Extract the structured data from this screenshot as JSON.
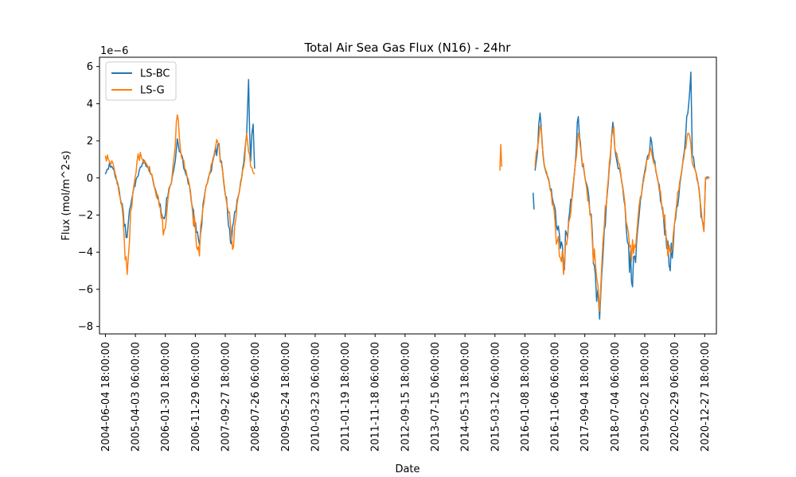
{
  "chart_data": {
    "type": "line",
    "title": "Total Air Sea Gas Flux (N16) - 24hr",
    "xlabel": "Date",
    "ylabel": "Flux (mol/m^2-s)",
    "y_scale_label": "1e−6",
    "x_range": [
      "2004-04-06",
      "2021-04-25"
    ],
    "ylim": [
      -8.4,
      6.5
    ],
    "grid": false,
    "legend_position": "top-left",
    "x_ticks": [
      "2004-06-04 18:00:00",
      "2005-04-03 06:00:00",
      "2006-01-30 18:00:00",
      "2006-11-29 06:00:00",
      "2007-09-27 18:00:00",
      "2008-07-26 06:00:00",
      "2009-05-24 18:00:00",
      "2010-03-23 06:00:00",
      "2011-01-19 18:00:00",
      "2011-11-18 06:00:00",
      "2012-09-15 18:00:00",
      "2013-07-15 06:00:00",
      "2014-05-13 18:00:00",
      "2015-03-12 06:00:00",
      "2016-01-08 18:00:00",
      "2016-11-06 06:00:00",
      "2017-09-04 18:00:00",
      "2018-07-04 06:00:00",
      "2019-05-02 18:00:00",
      "2020-02-29 06:00:00",
      "2020-12-27 18:00:00"
    ],
    "y_ticks": [
      6,
      4,
      2,
      0,
      -2,
      -4,
      -6,
      -8
    ],
    "y_tick_labels": [
      "6",
      "4",
      "2",
      "0",
      "−2",
      "−4",
      "−6",
      "−8"
    ],
    "series": [
      {
        "name": "LS-BC",
        "color": "#1f77b4",
        "segments": [
          [
            [
              "2004-06-04",
              0.2
            ],
            [
              "2004-07-15",
              0.8
            ],
            [
              "2004-09-01",
              0.4
            ],
            [
              "2004-10-20",
              -0.6
            ],
            [
              "2004-12-01",
              -1.8
            ],
            [
              "2005-01-10",
              -3.2
            ],
            [
              "2005-02-15",
              -1.5
            ],
            [
              "2005-03-20",
              -0.5
            ],
            [
              "2005-05-01",
              0.1
            ],
            [
              "2005-06-15",
              0.8
            ],
            [
              "2005-08-01",
              0.6
            ],
            [
              "2005-09-15",
              0.2
            ],
            [
              "2005-11-01",
              -0.8
            ],
            [
              "2005-12-10",
              -1.4
            ],
            [
              "2006-01-20",
              -2.2
            ],
            [
              "2006-02-25",
              -1.0
            ],
            [
              "2006-04-01",
              -0.3
            ],
            [
              "2006-05-01",
              0.6
            ],
            [
              "2006-06-01",
              2.1
            ],
            [
              "2006-07-01",
              1.4
            ],
            [
              "2006-08-15",
              0.4
            ],
            [
              "2006-10-01",
              -0.4
            ],
            [
              "2006-11-01",
              -1.6
            ],
            [
              "2006-12-01",
              -2.4
            ],
            [
              "2007-01-10",
              -3.6
            ],
            [
              "2007-02-15",
              -1.4
            ],
            [
              "2007-03-20",
              -0.4
            ],
            [
              "2007-05-01",
              0.3
            ],
            [
              "2007-06-10",
              1.2
            ],
            [
              "2007-07-15",
              1.8
            ],
            [
              "2007-08-20",
              0.9
            ],
            [
              "2007-09-20",
              -0.6
            ],
            [
              "2007-10-20",
              -1.8
            ],
            [
              "2007-11-20",
              -3.5
            ],
            [
              "2007-12-20",
              -2.4
            ],
            [
              "2008-01-25",
              -1.2
            ],
            [
              "2008-03-01",
              -0.2
            ],
            [
              "2008-04-01",
              0.8
            ],
            [
              "2008-05-01",
              2.4
            ],
            [
              "2008-05-20",
              5.3
            ],
            [
              "2008-06-10",
              0.9
            ],
            [
              "2008-07-05",
              2.9
            ],
            [
              "2008-07-20",
              0.5
            ]
          ],
          [
            [
              "2016-04-01",
              -0.8
            ],
            [
              "2016-04-10",
              -1.7
            ]
          ],
          [
            [
              "2016-04-20",
              0.4
            ],
            [
              "2016-05-15",
              1.4
            ],
            [
              "2016-06-10",
              3.5
            ],
            [
              "2016-07-10",
              1.2
            ],
            [
              "2016-08-15",
              0.2
            ],
            [
              "2016-10-01",
              -0.6
            ],
            [
              "2016-11-01",
              -1.5
            ],
            [
              "2016-12-01",
              -2.8
            ],
            [
              "2017-01-01",
              -3.8
            ],
            [
              "2017-02-01",
              -4.6
            ],
            [
              "2017-03-05",
              -3.0
            ],
            [
              "2017-04-05",
              -1.8
            ],
            [
              "2017-05-05",
              -0.6
            ],
            [
              "2017-06-01",
              0.8
            ],
            [
              "2017-07-01",
              3.3
            ],
            [
              "2017-08-01",
              1.2
            ],
            [
              "2017-09-01",
              0.2
            ],
            [
              "2017-10-15",
              -1.0
            ],
            [
              "2017-11-20",
              -3.0
            ],
            [
              "2017-12-20",
              -5.2
            ],
            [
              "2018-01-15",
              -6.0
            ],
            [
              "2018-02-01",
              -7.6
            ],
            [
              "2018-02-20",
              -5.4
            ],
            [
              "2018-03-20",
              -2.8
            ],
            [
              "2018-04-20",
              -0.8
            ],
            [
              "2018-05-20",
              1.0
            ],
            [
              "2018-06-15",
              3.0
            ],
            [
              "2018-07-15",
              1.2
            ],
            [
              "2018-09-01",
              0.2
            ],
            [
              "2018-10-15",
              -1.5
            ],
            [
              "2018-11-20",
              -3.6
            ],
            [
              "2018-12-20",
              -5.6
            ],
            [
              "2019-01-20",
              -4.2
            ],
            [
              "2019-02-20",
              -2.8
            ],
            [
              "2019-03-20",
              -1.2
            ],
            [
              "2019-05-01",
              0.3
            ],
            [
              "2019-06-01",
              1.2
            ],
            [
              "2019-07-01",
              2.2
            ],
            [
              "2019-08-01",
              1.0
            ],
            [
              "2019-09-15",
              -0.2
            ],
            [
              "2019-11-01",
              -1.8
            ],
            [
              "2019-12-10",
              -3.8
            ],
            [
              "2020-01-15",
              -5.0
            ],
            [
              "2020-02-15",
              -3.6
            ],
            [
              "2020-03-20",
              -1.6
            ],
            [
              "2020-04-20",
              -0.4
            ],
            [
              "2020-05-20",
              0.8
            ],
            [
              "2020-06-20",
              2.4
            ],
            [
              "2020-07-20",
              4.0
            ],
            [
              "2020-08-10",
              5.7
            ],
            [
              "2020-08-25",
              1.2
            ],
            [
              "2020-10-01",
              0.3
            ],
            [
              "2020-11-01",
              -0.6
            ],
            [
              "2020-12-01",
              -2.2
            ],
            [
              "2020-12-20",
              -2.8
            ],
            [
              "2021-01-05",
              0.0
            ],
            [
              "2021-02-15",
              0.0
            ]
          ]
        ]
      },
      {
        "name": "LS-G",
        "color": "#ff7f0e",
        "segments": [
          [
            [
              "2004-06-04",
              1.2
            ],
            [
              "2004-07-15",
              0.9
            ],
            [
              "2004-09-01",
              0.5
            ],
            [
              "2004-10-20",
              -0.8
            ],
            [
              "2004-12-01",
              -2.2
            ],
            [
              "2005-01-10",
              -5.2
            ],
            [
              "2005-02-15",
              -1.8
            ],
            [
              "2005-03-20",
              -0.4
            ],
            [
              "2005-05-01",
              1.3
            ],
            [
              "2005-06-15",
              1.0
            ],
            [
              "2005-08-01",
              0.7
            ],
            [
              "2005-09-15",
              0.2
            ],
            [
              "2005-11-01",
              -1.0
            ],
            [
              "2005-12-10",
              -1.6
            ],
            [
              "2006-01-20",
              -2.8
            ],
            [
              "2006-02-25",
              -1.2
            ],
            [
              "2006-04-01",
              -0.3
            ],
            [
              "2006-05-01",
              1.2
            ],
            [
              "2006-06-01",
              3.4
            ],
            [
              "2006-07-01",
              1.6
            ],
            [
              "2006-08-15",
              0.5
            ],
            [
              "2006-10-01",
              -0.4
            ],
            [
              "2006-11-01",
              -1.8
            ],
            [
              "2006-12-01",
              -2.8
            ],
            [
              "2007-01-10",
              -4.2
            ],
            [
              "2007-02-15",
              -1.6
            ],
            [
              "2007-03-20",
              -0.4
            ],
            [
              "2007-05-01",
              0.4
            ],
            [
              "2007-06-10",
              1.4
            ],
            [
              "2007-07-15",
              1.9
            ],
            [
              "2007-08-20",
              0.8
            ],
            [
              "2007-09-20",
              -0.5
            ],
            [
              "2007-10-20",
              -1.6
            ],
            [
              "2007-11-20",
              -2.6
            ],
            [
              "2007-12-20",
              -3.7
            ],
            [
              "2008-01-25",
              -1.4
            ],
            [
              "2008-03-01",
              -0.3
            ],
            [
              "2008-04-01",
              0.6
            ],
            [
              "2008-05-01",
              2.4
            ],
            [
              "2008-05-20",
              1.4
            ],
            [
              "2008-06-10",
              0.6
            ],
            [
              "2008-07-05",
              0.3
            ],
            [
              "2008-07-20",
              0.2
            ]
          ],
          [
            [
              "2015-05-01",
              0.4
            ],
            [
              "2015-05-10",
              1.8
            ],
            [
              "2015-05-20",
              0.6
            ]
          ],
          [
            [
              "2016-04-20",
              0.6
            ],
            [
              "2016-05-15",
              1.6
            ],
            [
              "2016-06-10",
              2.8
            ],
            [
              "2016-07-10",
              1.3
            ],
            [
              "2016-08-15",
              0.3
            ],
            [
              "2016-10-01",
              -0.8
            ],
            [
              "2016-11-01",
              -1.9
            ],
            [
              "2016-12-01",
              -3.4
            ],
            [
              "2017-01-01",
              -4.3
            ],
            [
              "2017-02-01",
              -5.2
            ],
            [
              "2017-03-05",
              -3.6
            ],
            [
              "2017-04-05",
              -2.2
            ],
            [
              "2017-05-05",
              -0.8
            ],
            [
              "2017-06-01",
              0.8
            ],
            [
              "2017-07-01",
              2.4
            ],
            [
              "2017-08-01",
              1.3
            ],
            [
              "2017-09-01",
              0.2
            ],
            [
              "2017-10-15",
              -1.3
            ],
            [
              "2017-11-20",
              -3.4
            ],
            [
              "2017-12-20",
              -4.6
            ],
            [
              "2018-01-15",
              -5.8
            ],
            [
              "2018-02-01",
              -7.2
            ],
            [
              "2018-02-20",
              -5.0
            ],
            [
              "2018-03-20",
              -2.6
            ],
            [
              "2018-04-20",
              -0.6
            ],
            [
              "2018-05-20",
              1.2
            ],
            [
              "2018-06-15",
              2.6
            ],
            [
              "2018-07-15",
              1.4
            ],
            [
              "2018-09-01",
              0.3
            ],
            [
              "2018-10-15",
              -1.4
            ],
            [
              "2018-11-20",
              -3.0
            ],
            [
              "2018-12-20",
              -4.5
            ],
            [
              "2019-01-20",
              -3.6
            ],
            [
              "2019-02-20",
              -2.4
            ],
            [
              "2019-03-20",
              -1.0
            ],
            [
              "2019-05-01",
              0.2
            ],
            [
              "2019-06-01",
              1.0
            ],
            [
              "2019-07-01",
              1.6
            ],
            [
              "2019-08-01",
              0.8
            ],
            [
              "2019-09-15",
              -0.2
            ],
            [
              "2019-11-01",
              -1.6
            ],
            [
              "2019-12-10",
              -3.3
            ],
            [
              "2020-01-15",
              -4.0
            ],
            [
              "2020-02-15",
              -3.0
            ],
            [
              "2020-03-20",
              -1.4
            ],
            [
              "2020-04-20",
              -0.2
            ],
            [
              "2020-05-20",
              0.8
            ],
            [
              "2020-06-20",
              1.6
            ],
            [
              "2020-07-20",
              2.4
            ],
            [
              "2020-08-10",
              1.8
            ],
            [
              "2020-08-25",
              0.8
            ],
            [
              "2020-10-01",
              0.3
            ],
            [
              "2020-11-01",
              -0.7
            ],
            [
              "2020-12-01",
              -2.2
            ],
            [
              "2020-12-20",
              -2.9
            ],
            [
              "2021-01-05",
              0.0
            ],
            [
              "2021-02-15",
              0.0
            ]
          ]
        ]
      }
    ]
  }
}
